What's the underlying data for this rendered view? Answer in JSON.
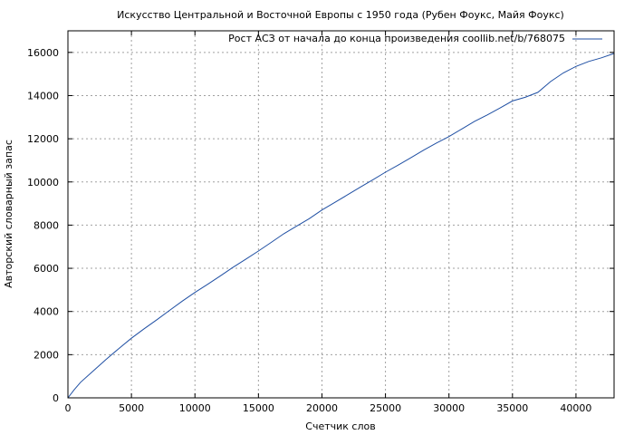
{
  "chart_data": {
    "type": "line",
    "title": "Искусство Центральной и Восточной Европы с 1950 года (Рубен Фоукс, Майя Фоукс)",
    "xlabel": "Счетчик слов",
    "ylabel": "Авторский словарный запас",
    "xlim": [
      0,
      43000
    ],
    "ylim": [
      0,
      17000
    ],
    "xticks": [
      0,
      5000,
      10000,
      15000,
      20000,
      25000,
      30000,
      35000,
      40000
    ],
    "yticks": [
      0,
      2000,
      4000,
      6000,
      8000,
      10000,
      12000,
      14000,
      16000
    ],
    "grid": true,
    "legend_position": "top-right",
    "series": [
      {
        "name": "Рост АСЗ от начала до конца произведения coollib.net/b/768075",
        "color": "#1f4fa3",
        "x": [
          0,
          500,
          1000,
          2000,
          3000,
          4000,
          5000,
          6000,
          7000,
          8000,
          9000,
          10000,
          11000,
          12000,
          13000,
          14000,
          15000,
          16000,
          17000,
          18000,
          19000,
          20000,
          21000,
          22000,
          23000,
          24000,
          25000,
          26000,
          27000,
          28000,
          29000,
          30000,
          31000,
          32000,
          33000,
          34000,
          35000,
          36000,
          37000,
          38000,
          39000,
          40000,
          41000,
          42000,
          43000
        ],
        "y": [
          0,
          380,
          720,
          1250,
          1780,
          2280,
          2760,
          3200,
          3620,
          4050,
          4480,
          4880,
          5260,
          5650,
          6050,
          6420,
          6800,
          7200,
          7600,
          7950,
          8300,
          8700,
          9050,
          9400,
          9750,
          10100,
          10450,
          10780,
          11120,
          11470,
          11800,
          12100,
          12450,
          12800,
          13100,
          13420,
          13750,
          13920,
          14150,
          14650,
          15050,
          15350,
          15580,
          15750,
          15950
        ]
      }
    ]
  }
}
